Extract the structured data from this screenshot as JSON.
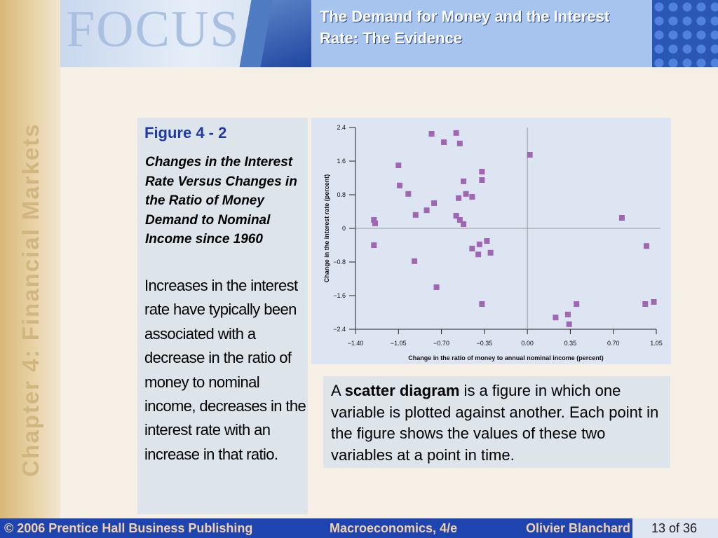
{
  "sidebar": {
    "chapter": "Chapter 4: Financial Markets"
  },
  "header": {
    "focus_logo_text": "FOCUS",
    "title": "The Demand for Money and the Interest Rate: The Evidence"
  },
  "figure": {
    "title": "Figure 4 - 2",
    "subtitle": "Changes in the Interest Rate Versus Changes in the Ratio of Money Demand to Nominal Income since 1960",
    "body": "Increases in the interest rate have typically been associated with a decrease in the ratio of money to nominal income, decreases in the interest rate with an increase in that ratio."
  },
  "definition": {
    "prefix": "A ",
    "term": "scatter diagram",
    "text": " is a figure in which one variable is plotted against another. Each point in the figure shows the values of these two variables at a point in time."
  },
  "footer": {
    "copyright": "© 2006 Prentice Hall Business Publishing",
    "book": "Macroeconomics, 4/e",
    "author": "Olivier Blanchard",
    "page": "13 of 36"
  },
  "colors": {
    "marker": "#a066b4",
    "footer": "#1e44b0",
    "title_blue": "#1f3aa8"
  },
  "chart_data": {
    "type": "scatter",
    "xlabel": "Change in the ratio of money to annual nominal income (percent)",
    "ylabel": "Change in the interest rate (percent)",
    "xlim": [
      -1.4,
      1.05
    ],
    "ylim": [
      -2.4,
      2.4
    ],
    "xticks": [
      "−1.40",
      "−1.05",
      "−0.70",
      "−0.35",
      "0.00",
      "0.35",
      "0.70",
      "1.05"
    ],
    "yticks": [
      "2.4",
      "1.6",
      "0.8",
      "0",
      "−0.8",
      "−1.6",
      "−2.4"
    ],
    "points": [
      [
        -0.78,
        2.25
      ],
      [
        -0.58,
        2.27
      ],
      [
        -0.68,
        2.05
      ],
      [
        -0.55,
        2.02
      ],
      [
        -1.05,
        1.5
      ],
      [
        0.02,
        1.75
      ],
      [
        -0.37,
        1.35
      ],
      [
        -0.37,
        1.15
      ],
      [
        -0.52,
        1.12
      ],
      [
        -1.04,
        1.02
      ],
      [
        -0.97,
        0.82
      ],
      [
        -0.5,
        0.82
      ],
      [
        -0.45,
        0.75
      ],
      [
        -0.56,
        0.72
      ],
      [
        -0.76,
        0.6
      ],
      [
        -0.82,
        0.43
      ],
      [
        -0.91,
        0.32
      ],
      [
        -0.58,
        0.3
      ],
      [
        -1.25,
        0.2
      ],
      [
        -1.24,
        0.12
      ],
      [
        -0.55,
        0.2
      ],
      [
        -0.52,
        0.1
      ],
      [
        0.77,
        0.25
      ],
      [
        -1.25,
        -0.4
      ],
      [
        -0.33,
        -0.3
      ],
      [
        -0.39,
        -0.38
      ],
      [
        -0.45,
        -0.48
      ],
      [
        -0.3,
        -0.58
      ],
      [
        -0.4,
        -0.62
      ],
      [
        0.97,
        -0.42
      ],
      [
        -0.92,
        -0.78
      ],
      [
        -0.74,
        -1.4
      ],
      [
        -0.37,
        -1.8
      ],
      [
        0.4,
        -1.8
      ],
      [
        0.96,
        -1.8
      ],
      [
        1.03,
        -1.75
      ],
      [
        0.33,
        -2.05
      ],
      [
        0.23,
        -2.12
      ],
      [
        0.34,
        -2.28
      ]
    ]
  }
}
